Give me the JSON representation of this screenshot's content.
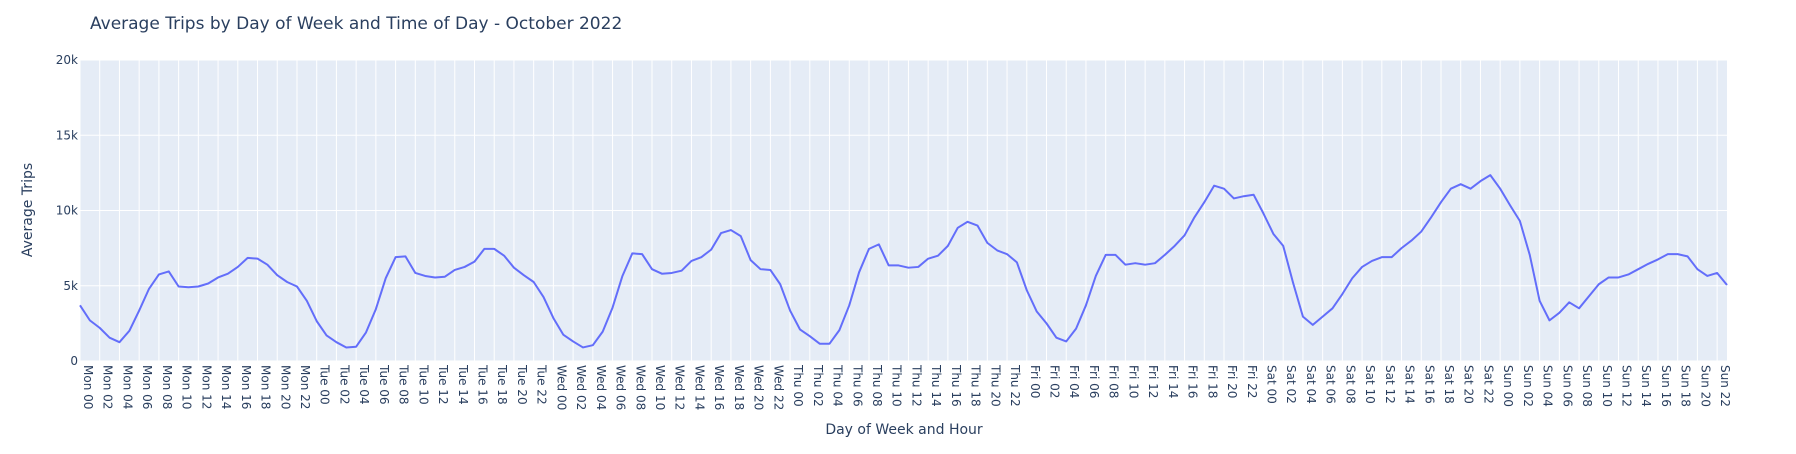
{
  "chart_data": {
    "type": "line",
    "title": "Average Trips by Day of Week and Time of Day - October 2022",
    "xlabel": "Day of Week and Hour",
    "ylabel": "Average Trips",
    "ylim": [
      0,
      20000
    ],
    "y_ticks": [
      {
        "value": 0,
        "label": "0"
      },
      {
        "value": 5000,
        "label": "5k"
      },
      {
        "value": 10000,
        "label": "10k"
      },
      {
        "value": 15000,
        "label": "15k"
      },
      {
        "value": 20000,
        "label": "20k"
      }
    ],
    "days": [
      "Mon",
      "Tue",
      "Wed",
      "Thu",
      "Fri",
      "Sat",
      "Sun"
    ],
    "x_tick_every": 2,
    "grid": true,
    "legend": "none",
    "colors": {
      "line": "#636efa",
      "plot_bg": "#e5ecf6",
      "grid": "#ffffff",
      "text": "#2a3f5f",
      "title": "#2a3f5f"
    },
    "series": [
      {
        "values": [
          3700,
          2700,
          2200,
          1550,
          1250,
          2000,
          3350,
          4800,
          5750,
          5950,
          4950,
          4900,
          4950,
          5150,
          5550,
          5800,
          6250,
          6850,
          6800,
          6400,
          5700,
          5250,
          4950,
          4000,
          2650,
          1700,
          1250,
          900,
          950,
          1900,
          3450,
          5500,
          6900,
          6950,
          5850,
          5650,
          5550,
          5600,
          6050,
          6250,
          6600,
          7450,
          7450,
          7000,
          6200,
          5700,
          5250,
          4250,
          2850,
          1750,
          1300,
          900,
          1050,
          1950,
          3550,
          5650,
          7150,
          7100,
          6100,
          5800,
          5850,
          6000,
          6650,
          6900,
          7400,
          8500,
          8700,
          8300,
          6700,
          6100,
          6050,
          5100,
          3350,
          2100,
          1650,
          1150,
          1150,
          2050,
          3700,
          5900,
          7450,
          7750,
          6350,
          6350,
          6200,
          6250,
          6800,
          7000,
          7650,
          8850,
          9250,
          9000,
          7850,
          7350,
          7100,
          6550,
          4700,
          3300,
          2500,
          1550,
          1300,
          2150,
          3700,
          5650,
          7050,
          7050,
          6400,
          6500,
          6400,
          6500,
          7050,
          7650,
          8350,
          9550,
          10550,
          11650,
          11450,
          10800,
          10950,
          11050,
          9800,
          8450,
          7650,
          5200,
          2950,
          2400,
          2950,
          3500,
          4450,
          5500,
          6250,
          6650,
          6900,
          6900,
          7500,
          8000,
          8600,
          9550,
          10550,
          11450,
          11750,
          11450,
          11950,
          12350,
          11450,
          10350,
          9300,
          7050,
          4000,
          2700,
          3200,
          3900,
          3500,
          4300,
          5100,
          5550,
          5550,
          5750,
          6100,
          6450,
          6750,
          7100,
          7100,
          6950,
          6100,
          5650,
          5850,
          5050
        ]
      }
    ]
  }
}
